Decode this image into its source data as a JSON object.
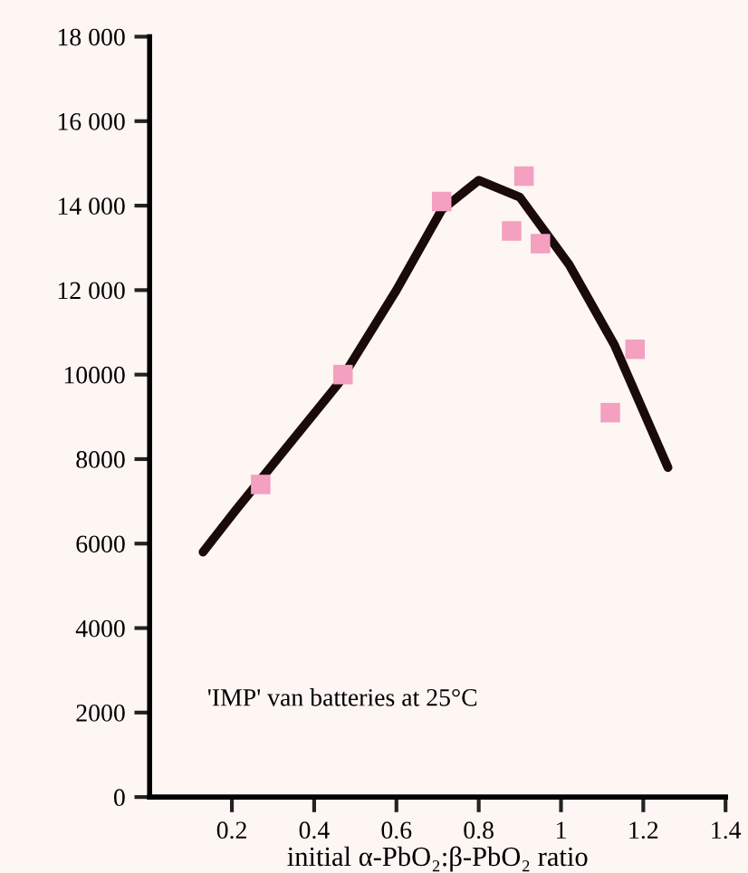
{
  "chart_data": {
    "type": "scatter",
    "xlabel": "initial α-PbO₂:β-PbO₂ ratio",
    "annotations": [
      "'IMP' van batteries at 25°C"
    ],
    "series": [
      {
        "color": "#f4a0c0",
        "marker": "square",
        "x": [
          0.27,
          0.47,
          0.71,
          0.91,
          0.88,
          0.95,
          1.18,
          1.12
        ],
        "values": [
          7400,
          10000,
          14100,
          14700,
          13400,
          13100,
          10600,
          9100
        ]
      },
      {
        "type": "line",
        "color": "#1a0a0a",
        "marker": "none",
        "x": [
          0.13,
          0.21,
          0.46,
          0.6,
          0.71,
          0.8,
          0.9,
          1.02,
          1.13,
          1.26
        ],
        "values": [
          5800,
          6800,
          9800,
          12000,
          13900,
          14600,
          14200,
          12600,
          10700,
          7800
        ]
      }
    ],
    "xlim": [
      0,
      1.4
    ],
    "ylim": [
      0,
      18000
    ],
    "xticks": [
      0.2,
      0.4,
      0.6,
      0.8,
      1.0,
      1.2,
      1.4
    ],
    "yticks": [
      0,
      2000,
      4000,
      6000,
      8000,
      10000,
      {
        "value": 12000,
        "label": "12 000"
      },
      {
        "value": 14000,
        "label": "14 000"
      },
      {
        "value": 16000,
        "label": "16 000"
      },
      {
        "value": 18000,
        "label": "18 000"
      }
    ],
    "grid": false,
    "legend": false
  }
}
